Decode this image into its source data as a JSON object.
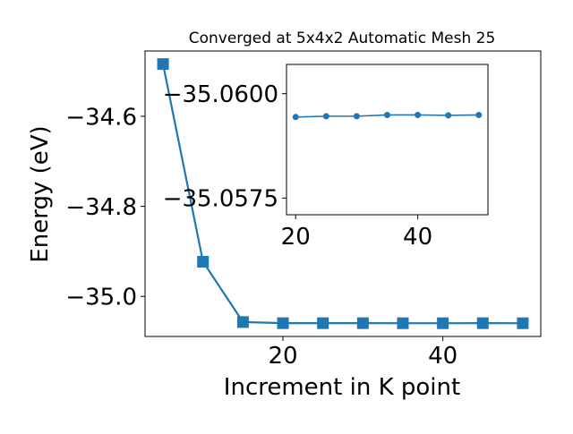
{
  "chart_data": [
    {
      "type": "line",
      "title": "Converged at 5x4x2 Automatic Mesh 25",
      "xlabel": "Increment in K point",
      "ylabel": "Energy (eV)",
      "x": [
        5,
        10,
        15,
        20,
        25,
        30,
        35,
        40,
        45,
        50
      ],
      "series": [
        {
          "values": [
            -34.484,
            -34.923,
            -35.057,
            -35.0595,
            -35.0595,
            -35.0595,
            -35.0596,
            -35.0596,
            -35.0595,
            -35.0596
          ],
          "marker": "square",
          "color": "#1f77b4"
        }
      ],
      "xticks": [
        20,
        40
      ],
      "xtick_labels": [
        "20",
        "40"
      ],
      "yticks": [
        -34.6,
        -34.8,
        -35.0
      ],
      "ytick_labels": [
        "−34.6",
        "−34.8",
        "−35.0"
      ],
      "xlim": [
        2.75,
        52.25
      ],
      "ylim": [
        -35.089,
        -34.455
      ],
      "grid": false
    },
    {
      "type": "line",
      "title": "",
      "xlabel": "",
      "ylabel": "",
      "x": [
        20,
        25,
        30,
        35,
        40,
        45,
        50
      ],
      "series": [
        {
          "values": [
            -35.05944,
            -35.05946,
            -35.05946,
            -35.05949,
            -35.05949,
            -35.05948,
            -35.05949
          ],
          "marker": "circle",
          "color": "#1f77b4"
        }
      ],
      "xticks": [
        20,
        40
      ],
      "xtick_labels": [
        "20",
        "40"
      ],
      "yticks": [
        -35.06,
        -35.0575
      ],
      "ytick_labels": [
        "−35.0600",
        "−35.0575"
      ],
      "xlim": [
        18.5,
        51.5
      ],
      "ylim": [
        -35.0571,
        -35.0607
      ],
      "grid": false
    }
  ]
}
